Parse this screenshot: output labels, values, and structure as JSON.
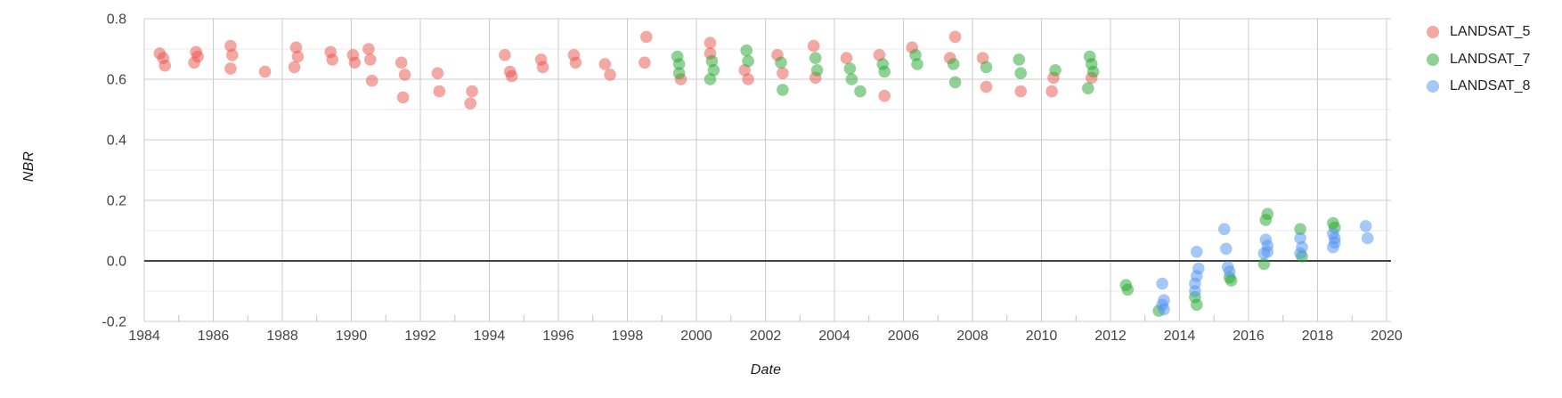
{
  "chart_data": {
    "type": "scatter",
    "title": "",
    "xlabel": "Date",
    "ylabel": "NBR",
    "xlim": [
      1984,
      2020.13
    ],
    "ylim": [
      -0.2,
      0.8
    ],
    "x_major_ticks": [
      1984,
      1986,
      1988,
      1990,
      1992,
      1994,
      1996,
      1998,
      2000,
      2002,
      2004,
      2006,
      2008,
      2010,
      2012,
      2014,
      2016,
      2018,
      2020
    ],
    "x_minor_ticks": [
      1985,
      1987,
      1989,
      1991,
      1993,
      1995,
      1997,
      1999,
      2001,
      2003,
      2005,
      2007,
      2009,
      2011,
      2013,
      2015,
      2017,
      2019
    ],
    "y_major_ticks": [
      -0.2,
      0.0,
      0.2,
      0.4,
      0.6,
      0.8
    ],
    "y_minor_ticks": [
      -0.1,
      0.1,
      0.3,
      0.5,
      0.7
    ],
    "grid": true,
    "legend_position": "right",
    "baseline_value": 0,
    "point_radius": 6.8,
    "point_opacity": 0.5,
    "colors": {
      "grid_major": "#cccccc",
      "grid_minor": "#ebebeb",
      "baseline": "#424242",
      "tick_label": "#444444",
      "minor_tick": "#c2c2c2"
    },
    "series": [
      {
        "name": "LANDSAT_5",
        "color": "#e95149",
        "points": [
          [
            1984.45,
            0.685
          ],
          [
            1984.55,
            0.67
          ],
          [
            1984.6,
            0.645
          ],
          [
            1985.5,
            0.69
          ],
          [
            1985.55,
            0.675
          ],
          [
            1985.45,
            0.655
          ],
          [
            1986.5,
            0.71
          ],
          [
            1986.55,
            0.68
          ],
          [
            1986.5,
            0.635
          ],
          [
            1987.5,
            0.625
          ],
          [
            1988.4,
            0.705
          ],
          [
            1988.45,
            0.675
          ],
          [
            1988.35,
            0.64
          ],
          [
            1989.4,
            0.69
          ],
          [
            1989.45,
            0.665
          ],
          [
            1990.05,
            0.68
          ],
          [
            1990.1,
            0.655
          ],
          [
            1990.5,
            0.7
          ],
          [
            1990.55,
            0.665
          ],
          [
            1990.6,
            0.595
          ],
          [
            1991.45,
            0.655
          ],
          [
            1991.55,
            0.615
          ],
          [
            1991.5,
            0.54
          ],
          [
            1992.5,
            0.62
          ],
          [
            1992.55,
            0.56
          ],
          [
            1993.5,
            0.56
          ],
          [
            1993.45,
            0.52
          ],
          [
            1994.45,
            0.68
          ],
          [
            1994.6,
            0.625
          ],
          [
            1994.65,
            0.61
          ],
          [
            1995.5,
            0.665
          ],
          [
            1995.55,
            0.64
          ],
          [
            1996.45,
            0.68
          ],
          [
            1996.5,
            0.655
          ],
          [
            1997.35,
            0.65
          ],
          [
            1997.5,
            0.615
          ],
          [
            1998.55,
            0.74
          ],
          [
            1998.5,
            0.655
          ],
          [
            1999.55,
            0.6
          ],
          [
            2000.4,
            0.72
          ],
          [
            2000.4,
            0.685
          ],
          [
            2001.4,
            0.63
          ],
          [
            2001.5,
            0.6
          ],
          [
            2002.35,
            0.68
          ],
          [
            2002.5,
            0.62
          ],
          [
            2003.4,
            0.71
          ],
          [
            2003.45,
            0.605
          ],
          [
            2004.35,
            0.67
          ],
          [
            2005.3,
            0.68
          ],
          [
            2005.45,
            0.545
          ],
          [
            2006.25,
            0.705
          ],
          [
            2007.5,
            0.74
          ],
          [
            2007.35,
            0.67
          ],
          [
            2008.3,
            0.67
          ],
          [
            2008.4,
            0.575
          ],
          [
            2009.4,
            0.56
          ],
          [
            2010.35,
            0.605
          ],
          [
            2010.3,
            0.56
          ],
          [
            2011.45,
            0.605
          ]
        ]
      },
      {
        "name": "LANDSAT_7",
        "color": "#21a62c",
        "points": [
          [
            1999.45,
            0.675
          ],
          [
            1999.5,
            0.65
          ],
          [
            1999.5,
            0.62
          ],
          [
            2000.45,
            0.66
          ],
          [
            2000.5,
            0.63
          ],
          [
            2000.4,
            0.6
          ],
          [
            2001.45,
            0.695
          ],
          [
            2001.5,
            0.66
          ],
          [
            2002.45,
            0.655
          ],
          [
            2002.5,
            0.565
          ],
          [
            2003.45,
            0.67
          ],
          [
            2003.5,
            0.63
          ],
          [
            2004.45,
            0.635
          ],
          [
            2004.5,
            0.6
          ],
          [
            2004.75,
            0.56
          ],
          [
            2005.4,
            0.65
          ],
          [
            2005.45,
            0.625
          ],
          [
            2006.35,
            0.68
          ],
          [
            2006.4,
            0.65
          ],
          [
            2007.45,
            0.65
          ],
          [
            2007.5,
            0.59
          ],
          [
            2008.4,
            0.64
          ],
          [
            2009.35,
            0.665
          ],
          [
            2009.4,
            0.62
          ],
          [
            2010.4,
            0.63
          ],
          [
            2011.4,
            0.675
          ],
          [
            2011.45,
            0.65
          ],
          [
            2011.5,
            0.625
          ],
          [
            2011.35,
            0.57
          ],
          [
            2012.45,
            -0.08
          ],
          [
            2012.5,
            -0.095
          ],
          [
            2013.4,
            -0.165
          ],
          [
            2014.45,
            -0.12
          ],
          [
            2014.5,
            -0.145
          ],
          [
            2015.45,
            -0.055
          ],
          [
            2015.5,
            -0.065
          ],
          [
            2016.45,
            -0.01
          ],
          [
            2016.55,
            0.155
          ],
          [
            2016.5,
            0.135
          ],
          [
            2017.5,
            0.105
          ],
          [
            2017.55,
            0.015
          ],
          [
            2018.45,
            0.125
          ],
          [
            2018.5,
            0.11
          ]
        ]
      },
      {
        "name": "LANDSAT_8",
        "color": "#4d91f1",
        "points": [
          [
            2013.5,
            -0.075
          ],
          [
            2013.55,
            -0.13
          ],
          [
            2013.5,
            -0.145
          ],
          [
            2013.55,
            -0.16
          ],
          [
            2014.5,
            0.03
          ],
          [
            2014.55,
            -0.025
          ],
          [
            2014.5,
            -0.05
          ],
          [
            2014.45,
            -0.075
          ],
          [
            2014.45,
            -0.1
          ],
          [
            2015.3,
            0.105
          ],
          [
            2015.35,
            0.04
          ],
          [
            2015.4,
            -0.02
          ],
          [
            2015.45,
            -0.035
          ],
          [
            2016.45,
            0.025
          ],
          [
            2016.5,
            0.07
          ],
          [
            2016.55,
            0.05
          ],
          [
            2016.55,
            0.03
          ],
          [
            2017.5,
            0.075
          ],
          [
            2017.55,
            0.045
          ],
          [
            2017.5,
            0.025
          ],
          [
            2018.45,
            0.09
          ],
          [
            2018.5,
            0.075
          ],
          [
            2018.5,
            0.06
          ],
          [
            2018.45,
            0.045
          ],
          [
            2019.4,
            0.115
          ],
          [
            2019.45,
            0.075
          ]
        ]
      }
    ]
  }
}
